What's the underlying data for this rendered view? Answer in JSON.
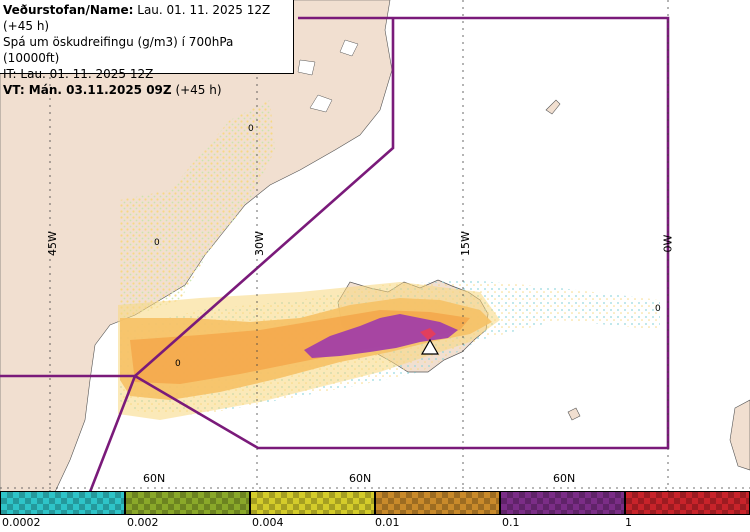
{
  "info": {
    "line1_label": "Veðurstofan/Name:",
    "line1_value": "Lau. 01. 11. 2025 12Z (+45 h)",
    "line2": "Spá um öskudreifingu (g/m3) í 700hPa (10000ft)",
    "line3": "IT: Lau. 01. 11. 2025 12Z",
    "line4_label": "VT: Mán. 03.11.2025 09Z",
    "line4_value": "(+45 h)"
  },
  "grid_labels": {
    "lon_45w": "45W",
    "lon_30w": "30W",
    "lon_15w": "15W",
    "lon_0w": "0W",
    "lat_60n_a": "60N",
    "lat_60n_b": "60N",
    "lat_60n_c": "60N"
  },
  "contour_labels": {
    "greenland_1": "0",
    "greenland_2": "0",
    "atlantic_1": "0",
    "east_1": "0"
  },
  "legend": {
    "ticks": [
      "0.0002",
      "0.002",
      "0.004",
      "0.01",
      "0.1",
      "1"
    ],
    "colors": [
      "#2ec4c8",
      "#8aa829",
      "#d4cc2a",
      "#c98a2a",
      "#7b2d87",
      "#c8232a"
    ]
  },
  "colors": {
    "land": "#f1dfd0",
    "sea": "#ffffff",
    "fir_boundary": "#7a1a7a",
    "ash_low": "#f7d77e",
    "ash_mid": "#f4a94c",
    "ash_high": "#a23fa6",
    "ash_peak": "#e53e5b"
  },
  "volcano_icon": "triangle-volcano-icon"
}
